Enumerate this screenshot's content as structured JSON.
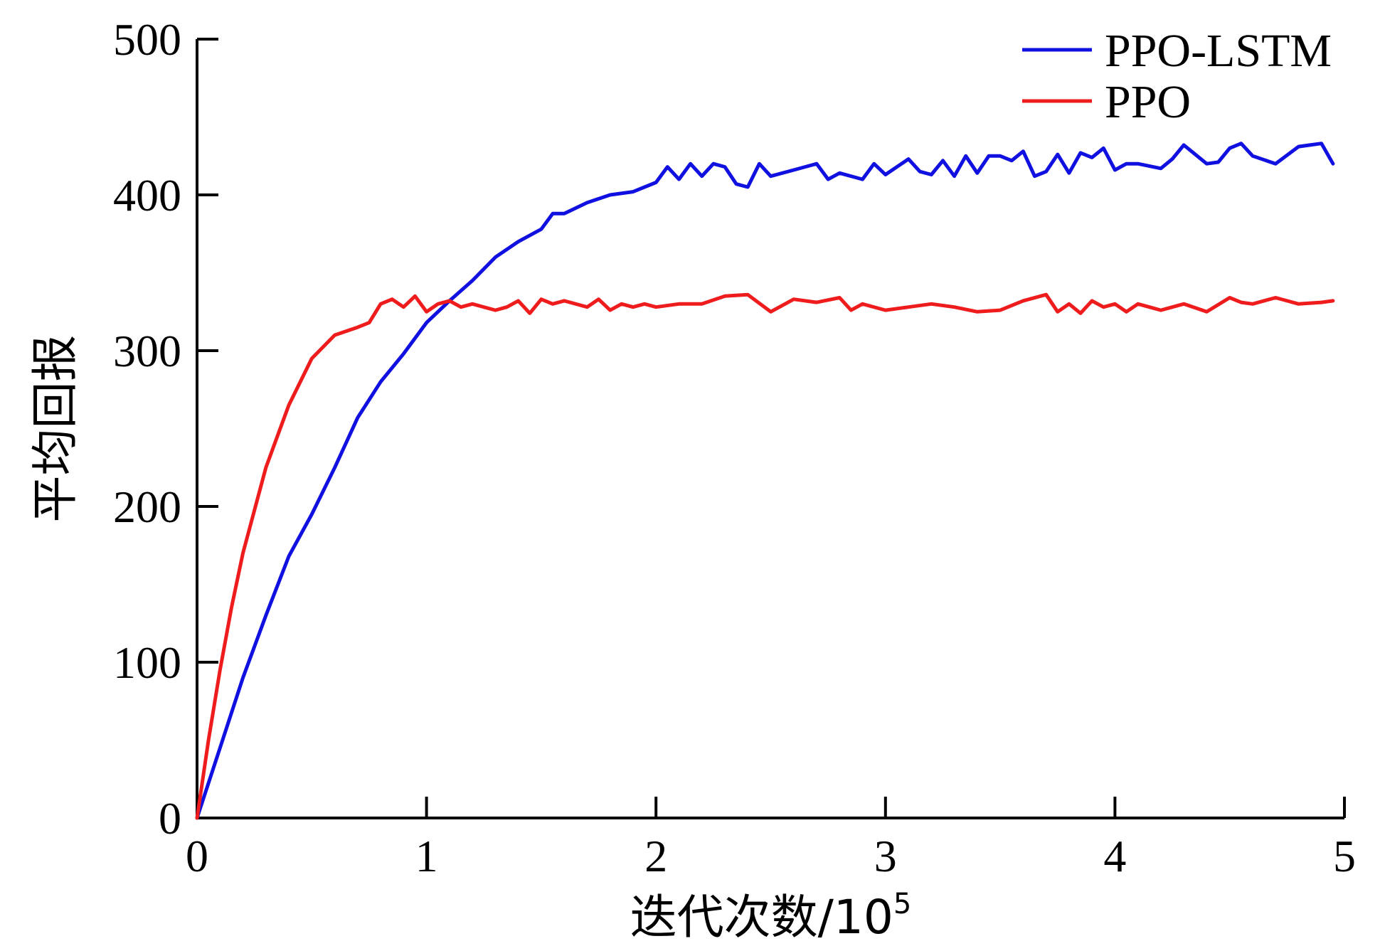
{
  "chart_data": {
    "type": "line",
    "xlabel": "迭代次数/10",
    "xlabel_sup": "5",
    "ylabel": "平均回报",
    "xlim": [
      0,
      5
    ],
    "ylim": [
      0,
      500
    ],
    "xticks": [
      0,
      1,
      2,
      3,
      4,
      5
    ],
    "yticks": [
      0,
      100,
      200,
      300,
      400,
      500
    ],
    "grid": false,
    "legend_position": "top-right",
    "series": [
      {
        "name": "PPO-LSTM",
        "color": "#1010e0",
        "x": [
          0,
          0.1,
          0.2,
          0.3,
          0.4,
          0.5,
          0.6,
          0.7,
          0.8,
          0.9,
          1.0,
          1.1,
          1.2,
          1.3,
          1.4,
          1.5,
          1.55,
          1.6,
          1.7,
          1.8,
          1.9,
          2.0,
          2.05,
          2.1,
          2.15,
          2.2,
          2.25,
          2.3,
          2.35,
          2.4,
          2.45,
          2.5,
          2.6,
          2.7,
          2.75,
          2.8,
          2.9,
          2.95,
          3.0,
          3.05,
          3.1,
          3.15,
          3.2,
          3.25,
          3.3,
          3.35,
          3.4,
          3.45,
          3.5,
          3.55,
          3.6,
          3.65,
          3.7,
          3.75,
          3.8,
          3.85,
          3.9,
          3.95,
          4.0,
          4.05,
          4.1,
          4.2,
          4.25,
          4.3,
          4.4,
          4.45,
          4.5,
          4.55,
          4.6,
          4.7,
          4.8,
          4.85,
          4.9,
          4.95
        ],
        "y": [
          0,
          45,
          90,
          130,
          168,
          195,
          225,
          257,
          280,
          298,
          318,
          332,
          345,
          360,
          370,
          378,
          388,
          388,
          395,
          400,
          402,
          408,
          418,
          410,
          420,
          412,
          420,
          418,
          407,
          405,
          420,
          412,
          416,
          420,
          410,
          414,
          410,
          420,
          413,
          418,
          423,
          415,
          413,
          422,
          412,
          425,
          414,
          425,
          425,
          422,
          428,
          412,
          415,
          426,
          414,
          427,
          424,
          430,
          416,
          420,
          420,
          417,
          423,
          432,
          420,
          421,
          430,
          433,
          425,
          420,
          431,
          432,
          433,
          420
        ]
      },
      {
        "name": "PPO",
        "color": "#ee1c1c",
        "x": [
          0,
          0.05,
          0.1,
          0.15,
          0.2,
          0.3,
          0.4,
          0.5,
          0.6,
          0.7,
          0.75,
          0.8,
          0.85,
          0.9,
          0.95,
          1.0,
          1.05,
          1.1,
          1.15,
          1.2,
          1.3,
          1.35,
          1.4,
          1.45,
          1.5,
          1.55,
          1.6,
          1.7,
          1.75,
          1.8,
          1.85,
          1.9,
          1.95,
          2.0,
          2.1,
          2.2,
          2.3,
          2.4,
          2.5,
          2.6,
          2.7,
          2.8,
          2.85,
          2.9,
          3.0,
          3.1,
          3.2,
          3.3,
          3.4,
          3.5,
          3.6,
          3.7,
          3.75,
          3.8,
          3.85,
          3.9,
          3.95,
          4.0,
          4.05,
          4.1,
          4.15,
          4.2,
          4.3,
          4.4,
          4.5,
          4.55,
          4.6,
          4.7,
          4.75,
          4.8,
          4.9,
          4.95
        ],
        "y": [
          0,
          50,
          95,
          135,
          170,
          225,
          265,
          295,
          310,
          315,
          318,
          330,
          333,
          328,
          335,
          325,
          330,
          332,
          328,
          330,
          326,
          328,
          332,
          324,
          333,
          330,
          332,
          328,
          333,
          326,
          330,
          328,
          330,
          328,
          330,
          330,
          335,
          336,
          325,
          333,
          331,
          334,
          326,
          330,
          326,
          328,
          330,
          328,
          325,
          326,
          332,
          336,
          325,
          330,
          324,
          332,
          328,
          330,
          325,
          330,
          328,
          326,
          330,
          325,
          334,
          331,
          330,
          334,
          332,
          330,
          331,
          332
        ]
      }
    ]
  }
}
